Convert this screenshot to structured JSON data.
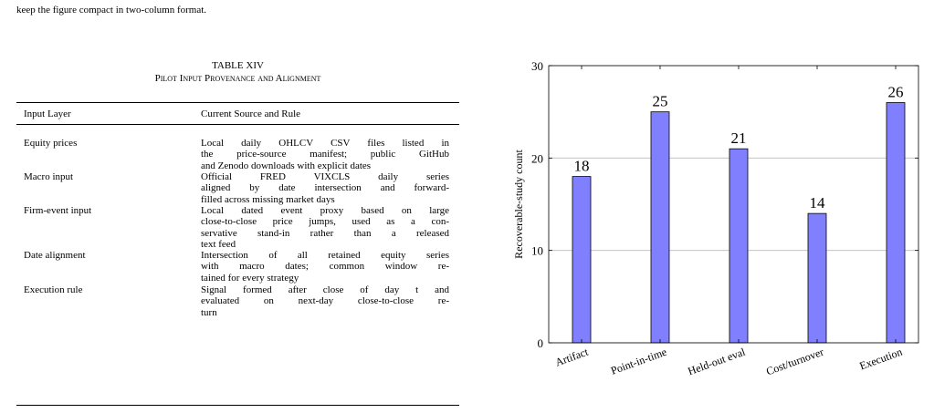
{
  "body_text": "keep the figure compact in two-column format.",
  "table": {
    "label": "TABLE XIV",
    "caption": "Pilot Input Provenance and Alignment",
    "header": [
      "Input Layer",
      "Current Source and Rule"
    ],
    "rows": [
      [
        "Equity prices",
        [
          "Local daily OHLCV CSV files listed in",
          "the price-source manifest; public GitHub",
          "and Zenodo downloads with explicit dates"
        ]
      ],
      [
        "Macro input",
        [
          "Official FRED VIXCLS daily series",
          "aligned by date intersection and forward-",
          "filled across missing market days"
        ]
      ],
      [
        "Firm-event input",
        [
          "Local dated event proxy based on large",
          "close-to-close price jumps, used as a con-",
          "servative stand-in rather than a released",
          "text feed"
        ]
      ],
      [
        "Date alignment",
        [
          "Intersection of all retained equity series",
          "with macro dates; common window re-",
          "tained for every strategy"
        ]
      ],
      [
        "Execution rule",
        [
          "Signal formed after close of day t and",
          "evaluated on next-day close-to-close re-",
          "turn"
        ]
      ]
    ]
  },
  "chart_data": {
    "type": "bar",
    "y_label": "Recoverable-study count",
    "categories": [
      "Artifact",
      "Point-in-time",
      "Held-out eval",
      "Cost/turnover",
      "Execution"
    ],
    "values": [
      18,
      25,
      21,
      14,
      26
    ],
    "color": "#8080ff",
    "ylim": [
      0,
      30
    ],
    "yticks": [
      0,
      10,
      20,
      30
    ],
    "grid": true
  }
}
